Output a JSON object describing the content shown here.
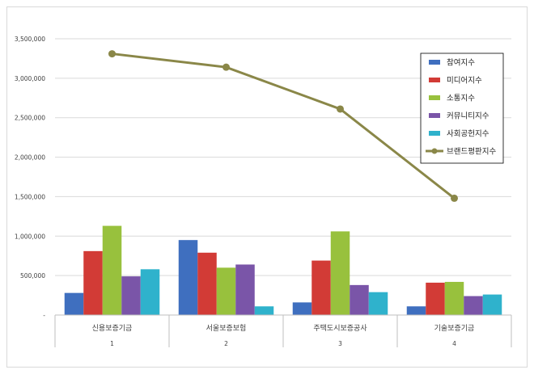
{
  "chart_data": {
    "type": "bar",
    "title": "",
    "xlabel": "",
    "ylabel": "",
    "ylim": [
      0,
      3500000
    ],
    "yticks": [
      0,
      500000,
      1000000,
      1500000,
      2000000,
      2500000,
      3000000,
      3500000
    ],
    "ytick_labels": [
      "-",
      "500,000",
      "1,000,000",
      "1,500,000",
      "2,000,000",
      "2,500,000",
      "3,000,000",
      "3,500,000"
    ],
    "grid": true,
    "legend_position": "top-right",
    "categories": [
      "신용보증기금",
      "서울보증보험",
      "주택도시보증공사",
      "기술보증기금"
    ],
    "category_numbers": [
      "1",
      "2",
      "3",
      "4"
    ],
    "series": [
      {
        "name": "참여지수",
        "kind": "bar",
        "color": "#3f6fbf",
        "values": [
          280000,
          950000,
          160000,
          110000
        ]
      },
      {
        "name": "미디어지수",
        "kind": "bar",
        "color": "#d23b36",
        "values": [
          810000,
          790000,
          690000,
          410000
        ]
      },
      {
        "name": "소통지수",
        "kind": "bar",
        "color": "#98c13d",
        "values": [
          1130000,
          600000,
          1060000,
          420000
        ]
      },
      {
        "name": "커뮤니티지수",
        "kind": "bar",
        "color": "#7a55a8",
        "values": [
          490000,
          640000,
          380000,
          240000
        ]
      },
      {
        "name": "사회공헌지수",
        "kind": "bar",
        "color": "#2fb2cc",
        "values": [
          580000,
          110000,
          290000,
          260000
        ]
      },
      {
        "name": "브랜드평판지수",
        "kind": "line",
        "color": "#8a8748",
        "values": [
          3310000,
          3140000,
          2610000,
          1480000
        ]
      }
    ]
  }
}
